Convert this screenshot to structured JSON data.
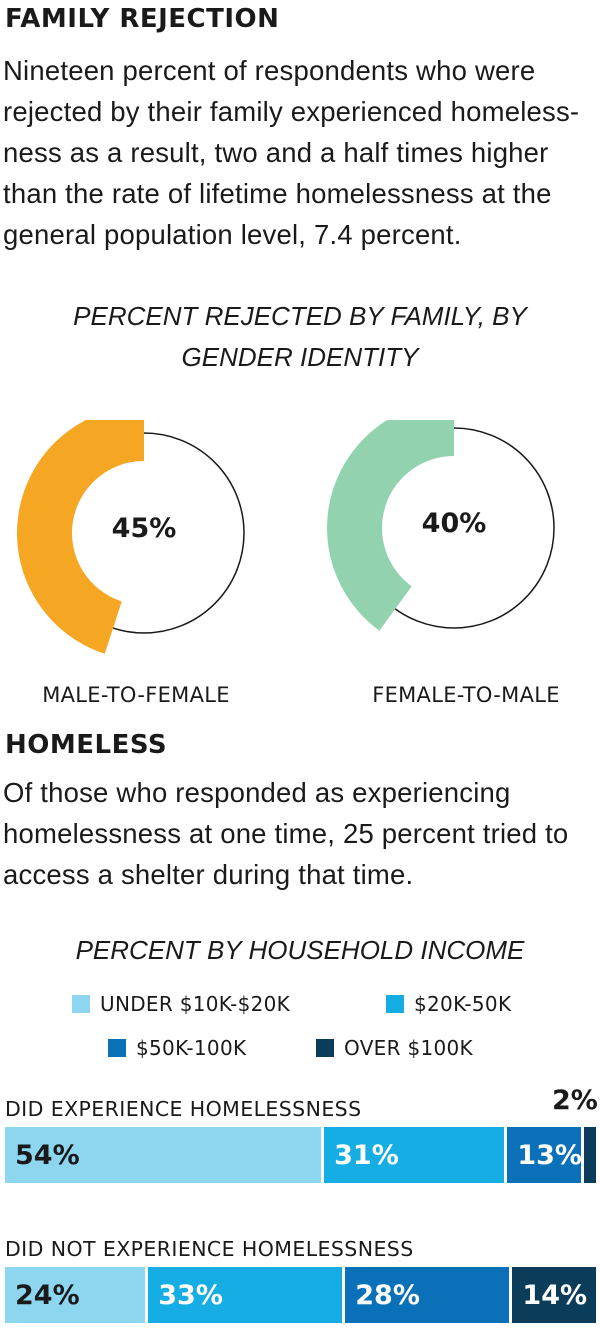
{
  "family_section": {
    "heading": "FAMILY REJECTION",
    "lines": [
      "Nineteen percent of respondents who were",
      "rejected by their family experienced homeless-",
      "ness as a result, two and a half times higher",
      "than the rate of lifetime homelessness at the",
      "general population level, 7.4 percent."
    ]
  },
  "homeless_section": {
    "heading": "HOMELESS",
    "lines": [
      "Of those who responded as experiencing",
      "homelessness at one time, 25 percent tried to",
      "access a shelter during that time."
    ]
  },
  "colors": {
    "orange": "#F5A623",
    "mint": "#93D2AE",
    "c1": "#8DD6F0",
    "c2": "#15ADE4",
    "c3": "#0A70B8",
    "c4": "#0B3D5A"
  },
  "chart_data": [
    {
      "type": "pie",
      "title_lines": [
        "PERCENT REJECTED BY FAMILY, BY",
        "GENDER IDENTITY"
      ],
      "series": [
        {
          "name": "MALE-TO-FEMALE",
          "value": 45,
          "label": "45%",
          "color": "#F5A623"
        },
        {
          "name": "FEMALE-TO-MALE",
          "value": 40,
          "label": "40%",
          "color": "#93D2AE"
        }
      ]
    },
    {
      "type": "bar",
      "stacked": true,
      "orientation": "horizontal",
      "title": "PERCENT BY HOUSEHOLD INCOME",
      "legend": [
        "UNDER $10K-$20K",
        "$20K-50K",
        "$50K-100K",
        "OVER $100K"
      ],
      "categories": [
        "DID EXPERIENCE HOMELESSNESS",
        "DID NOT EXPERIENCE HOMELESSNESS"
      ],
      "series": [
        {
          "name": "UNDER $10K-$20K",
          "values": [
            54,
            24
          ],
          "labels": [
            "54%",
            "24%"
          ]
        },
        {
          "name": "$20K-50K",
          "values": [
            31,
            33
          ],
          "labels": [
            "31%",
            "33%"
          ]
        },
        {
          "name": "$50K-100K",
          "values": [
            13,
            28
          ],
          "labels": [
            "13%",
            "28%"
          ]
        },
        {
          "name": "OVER $100K",
          "values": [
            2,
            14
          ],
          "labels": [
            "2%",
            "14%"
          ]
        }
      ]
    }
  ]
}
